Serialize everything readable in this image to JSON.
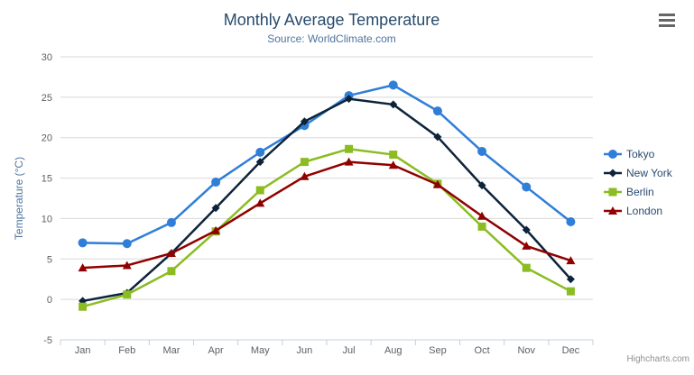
{
  "chart": {
    "title": "Monthly Average Temperature",
    "subtitle": "Source: WorldClimate.com",
    "y_axis_title": "Temperature (°C)",
    "credits": "Highcharts.com"
  },
  "export_menu": {
    "icon": "hamburger-icon"
  },
  "colors": {
    "background": "#ffffff",
    "title": "#274b6d",
    "subtitle": "#4d759e",
    "axis_title": "#4d759e",
    "axis_labels": "#606060",
    "grid": "#d8d8d8",
    "axis_line": "#c0d0e0",
    "legend_text": "#274b6d",
    "credits": "#909090",
    "menu_icon": "#666666"
  },
  "chart_data": {
    "type": "line",
    "title": "Monthly Average Temperature",
    "subtitle": "Source: WorldClimate.com",
    "xlabel": "",
    "ylabel": "Temperature (°C)",
    "ylim": [
      -5,
      30
    ],
    "ytick_interval": 5,
    "grid": true,
    "legend_position": "right",
    "categories": [
      "Jan",
      "Feb",
      "Mar",
      "Apr",
      "May",
      "Jun",
      "Jul",
      "Aug",
      "Sep",
      "Oct",
      "Nov",
      "Dec"
    ],
    "series": [
      {
        "name": "Tokyo",
        "color": "#2f7ed8",
        "marker": "circle",
        "values": [
          7.0,
          6.9,
          9.5,
          14.5,
          18.2,
          21.5,
          25.2,
          26.5,
          23.3,
          18.3,
          13.9,
          9.6
        ]
      },
      {
        "name": "New York",
        "color": "#0d233a",
        "marker": "diamond",
        "values": [
          -0.2,
          0.8,
          5.7,
          11.3,
          17.0,
          22.0,
          24.8,
          24.1,
          20.1,
          14.1,
          8.6,
          2.5
        ]
      },
      {
        "name": "Berlin",
        "color": "#8bbc21",
        "marker": "square",
        "values": [
          -0.9,
          0.6,
          3.5,
          8.4,
          13.5,
          17.0,
          18.6,
          17.9,
          14.3,
          9.0,
          3.9,
          1.0
        ]
      },
      {
        "name": "London",
        "color": "#910000",
        "marker": "triangle",
        "values": [
          3.9,
          4.2,
          5.7,
          8.5,
          11.9,
          15.2,
          17.0,
          16.6,
          14.2,
          10.3,
          6.6,
          4.8
        ]
      }
    ]
  }
}
